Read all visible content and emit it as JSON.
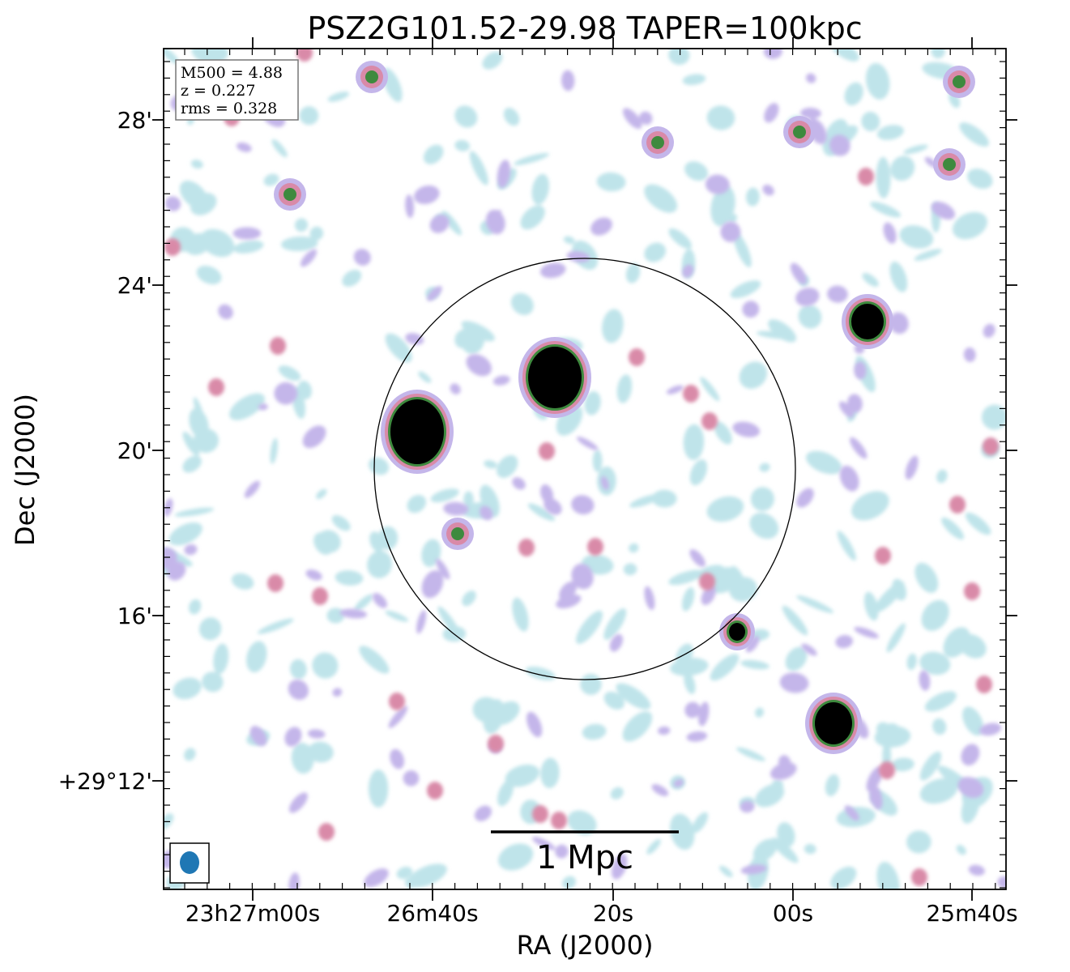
{
  "figure": {
    "title": "PSZ2G101.52-29.98 TAPER=100kpc",
    "xlabel": "RA (J2000)",
    "ylabel": "Dec (J2000)",
    "x_ticks": [
      "23h27m00s",
      "26m40s",
      "20s",
      "00s",
      "25m40s"
    ],
    "y_ticks": [
      "28'",
      "24'",
      "20'",
      "16'",
      "+29°12'"
    ],
    "info": {
      "m500": "M500 = 4.88",
      "z": "z = 0.227",
      "rms": "rms = 0.328"
    },
    "scalebar_label": "1 Mpc",
    "colors": {
      "faint": "#bfe4ea",
      "lavender": "#c4b6ea",
      "pink": "#d98aa8",
      "green": "#3e8a3e",
      "core": "#000000",
      "beam": "#1f77b4"
    },
    "sources": [
      {
        "name": "bright-source-left",
        "intensity": "saturated"
      },
      {
        "name": "bright-source-center",
        "intensity": "saturated"
      },
      {
        "name": "bright-source-east-top",
        "intensity": "saturated"
      },
      {
        "name": "bright-source-east-bottom",
        "intensity": "saturated"
      },
      {
        "name": "compact-source-ring-edge",
        "intensity": "saturated"
      }
    ]
  }
}
